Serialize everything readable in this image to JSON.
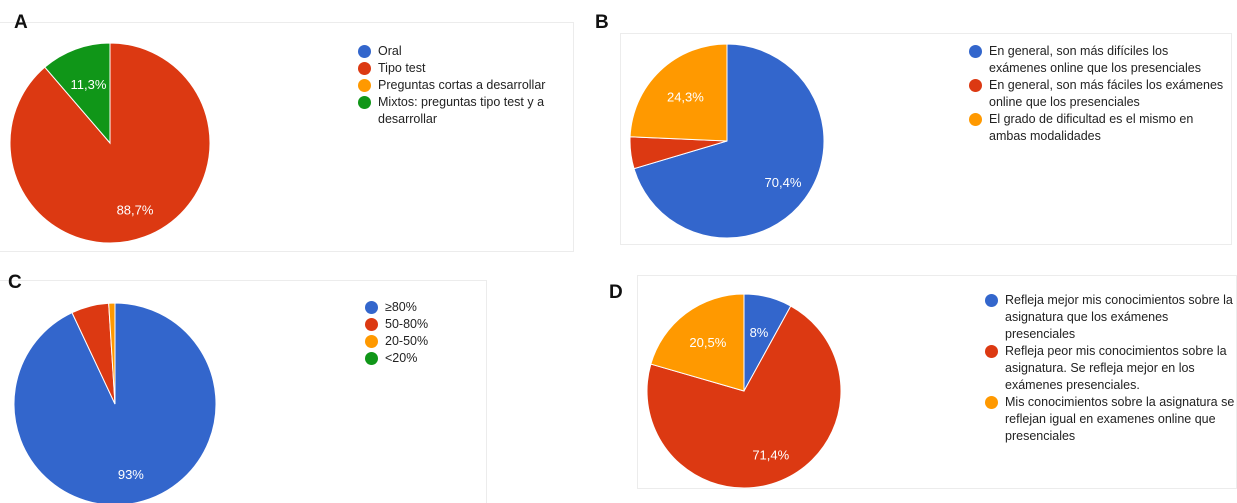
{
  "colors": {
    "blue": "#3366cc",
    "red": "#dc3912",
    "orange": "#ff9900",
    "green": "#109618"
  },
  "chart_data": [
    {
      "id": "A",
      "panel_label": "A",
      "type": "pie",
      "legend_position": "right",
      "slices": [
        {
          "label": "Oral",
          "value": 0,
          "color": "#3366cc",
          "text": ""
        },
        {
          "label": "Tipo test",
          "value": 88.7,
          "color": "#dc3912",
          "text": "88,7%"
        },
        {
          "label": "Preguntas cortas a desarrollar",
          "value": 0,
          "color": "#ff9900",
          "text": ""
        },
        {
          "label": "Mixtos: preguntas tipo test y a desarrollar",
          "value": 11.3,
          "color": "#109618",
          "text": "11,3%"
        }
      ]
    },
    {
      "id": "B",
      "panel_label": "B",
      "type": "pie",
      "legend_position": "right",
      "slices": [
        {
          "label": "En general, son más difíciles los exámenes online que los presenciales",
          "value": 70.4,
          "color": "#3366cc",
          "text": "70,4%"
        },
        {
          "label": "En general, son más fáciles los exámenes online que los presenciales",
          "value": 5.3,
          "color": "#dc3912",
          "text": ""
        },
        {
          "label": "El grado de dificultad es el mismo en ambas modalidades",
          "value": 24.3,
          "color": "#ff9900",
          "text": "24,3%"
        }
      ]
    },
    {
      "id": "C",
      "panel_label": "C",
      "type": "pie",
      "legend_position": "right",
      "slices": [
        {
          "label": "≥80%",
          "value": 93,
          "color": "#3366cc",
          "text": "93%"
        },
        {
          "label": "50-80%",
          "value": 6,
          "color": "#dc3912",
          "text": ""
        },
        {
          "label": "20-50%",
          "value": 1,
          "color": "#ff9900",
          "text": ""
        },
        {
          "label": "<20%",
          "value": 0,
          "color": "#109618",
          "text": ""
        }
      ]
    },
    {
      "id": "D",
      "panel_label": "D",
      "type": "pie",
      "legend_position": "right",
      "slices": [
        {
          "label": "Refleja mejor mis conocimientos sobre la asignatura que los exámenes presenciales",
          "value": 8,
          "color": "#3366cc",
          "text": "8%"
        },
        {
          "label": "Refleja peor mis conocimientos sobre la asignatura. Se refleja mejor en los exámenes presenciales.",
          "value": 71.4,
          "color": "#dc3912",
          "text": "71,4%"
        },
        {
          "label": "Mis conocimientos sobre la asignatura se reflejan igual en examenes online que presenciales",
          "value": 20.5,
          "color": "#ff9900",
          "text": "20,5%"
        }
      ]
    }
  ]
}
